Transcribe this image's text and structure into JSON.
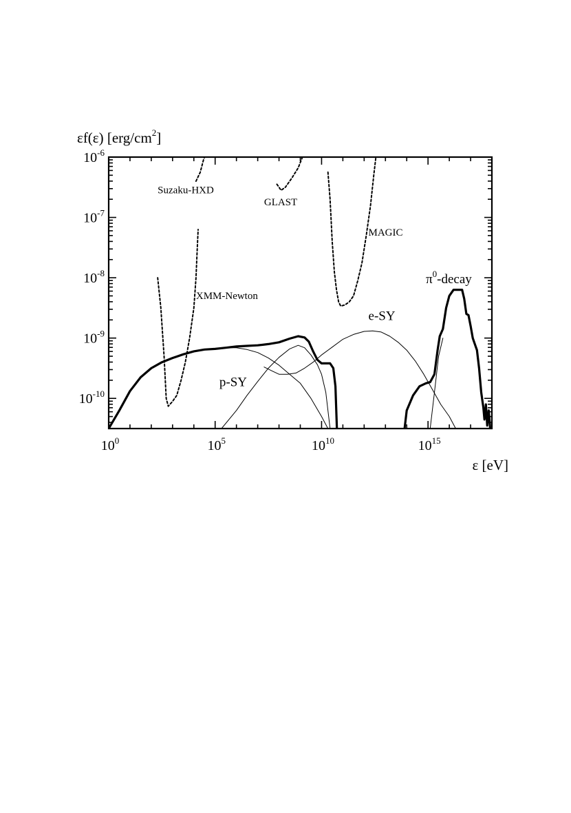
{
  "chart_data": {
    "type": "line",
    "xlabel": "ε [eV]",
    "ylabel": "εf(ε) [erg/cm2]",
    "xscale": "log",
    "yscale": "log",
    "xlim_log10": [
      0,
      18
    ],
    "ylim_log10": [
      -10.5,
      -6
    ],
    "grid": false,
    "x_ticks": [
      {
        "base": "10",
        "exp": "0",
        "log10": 0
      },
      {
        "base": "10",
        "exp": "5",
        "log10": 5
      },
      {
        "base": "10",
        "exp": "10",
        "log10": 10
      },
      {
        "base": "10",
        "exp": "15",
        "log10": 15
      }
    ],
    "y_ticks": [
      {
        "base": "10",
        "exp": "-6",
        "log10": -6
      },
      {
        "base": "10",
        "exp": "-7",
        "log10": -7
      },
      {
        "base": "10",
        "exp": "-8",
        "log10": -8
      },
      {
        "base": "10",
        "exp": "-9",
        "log10": -9
      },
      {
        "base": "10",
        "exp": "-10",
        "log10": -10
      }
    ],
    "series": [
      {
        "style": "thick",
        "points_log10": [
          [
            0,
            -10.5
          ],
          [
            0.5,
            -10.2
          ],
          [
            1,
            -9.88
          ],
          [
            1.5,
            -9.65
          ],
          [
            2,
            -9.5
          ],
          [
            2.5,
            -9.4
          ],
          [
            3,
            -9.33
          ],
          [
            3.5,
            -9.27
          ],
          [
            4,
            -9.22
          ],
          [
            4.5,
            -9.19
          ],
          [
            5,
            -9.18
          ],
          [
            5.5,
            -9.16
          ],
          [
            6,
            -9.14
          ],
          [
            6.5,
            -9.13
          ],
          [
            7,
            -9.12
          ],
          [
            7.5,
            -9.1
          ],
          [
            8,
            -9.07
          ],
          [
            8.5,
            -9.01
          ],
          [
            8.9,
            -8.97
          ],
          [
            9.2,
            -8.99
          ],
          [
            9.4,
            -9.06
          ],
          [
            9.6,
            -9.22
          ],
          [
            9.8,
            -9.36
          ],
          [
            10,
            -9.42
          ],
          [
            10.2,
            -9.42
          ],
          [
            10.4,
            -9.42
          ],
          [
            10.55,
            -9.5
          ],
          [
            10.65,
            -9.8
          ],
          [
            10.72,
            -10.5
          ]
        ]
      },
      {
        "style": "thick",
        "points_log10": [
          [
            13.9,
            -10.5
          ],
          [
            14,
            -10.2
          ],
          [
            14.3,
            -9.95
          ],
          [
            14.6,
            -9.8
          ],
          [
            14.9,
            -9.75
          ],
          [
            15.1,
            -9.73
          ],
          [
            15.3,
            -9.6
          ],
          [
            15.45,
            -9.2
          ],
          [
            15.55,
            -8.97
          ],
          [
            15.7,
            -8.85
          ],
          [
            15.85,
            -8.5
          ],
          [
            16,
            -8.3
          ],
          [
            16.2,
            -8.2
          ],
          [
            16.4,
            -8.2
          ],
          [
            16.6,
            -8.2
          ],
          [
            16.7,
            -8.35
          ],
          [
            16.8,
            -8.6
          ],
          [
            16.9,
            -8.62
          ],
          [
            17,
            -8.8
          ],
          [
            17.1,
            -9.0
          ],
          [
            17.2,
            -9.1
          ],
          [
            17.3,
            -9.2
          ],
          [
            17.4,
            -9.5
          ],
          [
            17.5,
            -9.9
          ],
          [
            17.6,
            -10.15
          ],
          [
            17.65,
            -10.35
          ],
          [
            17.72,
            -10.1
          ],
          [
            17.78,
            -10.45
          ],
          [
            17.85,
            -10.2
          ],
          [
            17.92,
            -10.5
          ]
        ]
      },
      {
        "style": "thin",
        "name": "p-SY",
        "points_log10": [
          [
            0,
            -10.5
          ],
          [
            0.5,
            -10.2
          ],
          [
            1,
            -9.88
          ],
          [
            1.5,
            -9.65
          ],
          [
            2,
            -9.5
          ],
          [
            2.5,
            -9.4
          ],
          [
            3,
            -9.33
          ],
          [
            3.5,
            -9.27
          ],
          [
            4,
            -9.22
          ],
          [
            4.5,
            -9.19
          ],
          [
            5,
            -9.18
          ],
          [
            5.5,
            -9.16
          ],
          [
            6,
            -9.16
          ],
          [
            6.5,
            -9.19
          ],
          [
            7,
            -9.24
          ],
          [
            7.5,
            -9.33
          ],
          [
            8,
            -9.45
          ],
          [
            8.5,
            -9.6
          ],
          [
            9,
            -9.75
          ],
          [
            9.5,
            -10.0
          ],
          [
            10,
            -10.3
          ],
          [
            10.3,
            -10.5
          ]
        ]
      },
      {
        "style": "thin",
        "points_log10": [
          [
            5.3,
            -10.5
          ],
          [
            6,
            -10.2
          ],
          [
            6.5,
            -9.95
          ],
          [
            7,
            -9.72
          ],
          [
            7.5,
            -9.5
          ],
          [
            8,
            -9.32
          ],
          [
            8.5,
            -9.18
          ],
          [
            8.9,
            -9.12
          ],
          [
            9.2,
            -9.16
          ],
          [
            9.5,
            -9.28
          ],
          [
            9.8,
            -9.44
          ],
          [
            10,
            -9.6
          ],
          [
            10.2,
            -9.9
          ],
          [
            10.4,
            -10.5
          ]
        ]
      },
      {
        "style": "thin",
        "name": "e-SY",
        "points_log10": [
          [
            7.3,
            -9.48
          ],
          [
            7.7,
            -9.55
          ],
          [
            8,
            -9.6
          ],
          [
            8.4,
            -9.6
          ],
          [
            8.8,
            -9.58
          ],
          [
            9.2,
            -9.5
          ],
          [
            9.6,
            -9.4
          ],
          [
            10,
            -9.28
          ],
          [
            10.5,
            -9.15
          ],
          [
            11,
            -9.02
          ],
          [
            11.5,
            -8.94
          ],
          [
            12,
            -8.89
          ],
          [
            12.4,
            -8.88
          ],
          [
            12.8,
            -8.9
          ],
          [
            13.2,
            -8.97
          ],
          [
            13.6,
            -9.07
          ],
          [
            14,
            -9.2
          ],
          [
            14.4,
            -9.38
          ],
          [
            14.8,
            -9.6
          ],
          [
            15.2,
            -9.85
          ],
          [
            15.6,
            -10.1
          ],
          [
            16,
            -10.3
          ],
          [
            16.3,
            -10.5
          ]
        ]
      },
      {
        "style": "thin",
        "points_log10": [
          [
            15.1,
            -10.5
          ],
          [
            15.3,
            -9.9
          ],
          [
            15.5,
            -9.3
          ],
          [
            15.7,
            -9.0
          ]
        ]
      },
      {
        "style": "dotted",
        "name": "Suzaku-HXD",
        "points_log10": [
          [
            4.1,
            -6.4
          ],
          [
            4.3,
            -6.25
          ],
          [
            4.45,
            -6.05
          ],
          [
            4.5,
            -6.0
          ]
        ]
      },
      {
        "style": "dotted",
        "name": "XMM-Newton",
        "points_log10": [
          [
            2.3,
            -8.0
          ],
          [
            2.45,
            -8.5
          ],
          [
            2.6,
            -9.3
          ],
          [
            2.7,
            -10.0
          ],
          [
            2.8,
            -10.13
          ],
          [
            3.0,
            -10.05
          ],
          [
            3.2,
            -9.95
          ],
          [
            3.4,
            -9.7
          ],
          [
            3.6,
            -9.4
          ],
          [
            3.8,
            -9.0
          ],
          [
            4.0,
            -8.5
          ],
          [
            4.1,
            -8.0
          ],
          [
            4.15,
            -7.6
          ],
          [
            4.2,
            -7.2
          ]
        ]
      },
      {
        "style": "dotted",
        "name": "GLAST",
        "points_log10": [
          [
            7.9,
            -6.45
          ],
          [
            8.1,
            -6.55
          ],
          [
            8.3,
            -6.5
          ],
          [
            8.6,
            -6.35
          ],
          [
            8.9,
            -6.18
          ],
          [
            9.1,
            -6.0
          ]
        ]
      },
      {
        "style": "dotted",
        "name": "MAGIC",
        "points_log10": [
          [
            10.3,
            -6.25
          ],
          [
            10.4,
            -6.7
          ],
          [
            10.5,
            -7.4
          ],
          [
            10.6,
            -7.9
          ],
          [
            10.7,
            -8.2
          ],
          [
            10.8,
            -8.4
          ],
          [
            10.9,
            -8.47
          ],
          [
            11.1,
            -8.45
          ],
          [
            11.3,
            -8.4
          ],
          [
            11.5,
            -8.3
          ],
          [
            11.7,
            -8.05
          ],
          [
            11.9,
            -7.75
          ],
          [
            12.1,
            -7.3
          ],
          [
            12.3,
            -6.8
          ],
          [
            12.45,
            -6.3
          ],
          [
            12.55,
            -6.0
          ]
        ]
      }
    ],
    "annotations": [
      {
        "text": "Suzaku-HXD",
        "pos_log10": [
          2.3,
          -6.6
        ],
        "type": "instrument"
      },
      {
        "text": "GLAST",
        "pos_log10": [
          7.3,
          -6.8
        ],
        "type": "instrument"
      },
      {
        "text": "MAGIC",
        "pos_log10": [
          12.2,
          -7.3
        ],
        "type": "instrument"
      },
      {
        "text": "XMM-Newton",
        "pos_log10": [
          4.1,
          -8.35
        ],
        "type": "instrument"
      },
      {
        "text": "p-SY",
        "pos_log10": [
          5.2,
          -9.8
        ],
        "type": "component"
      },
      {
        "text": "e-SY",
        "pos_log10": [
          12.2,
          -8.7
        ],
        "type": "component"
      }
    ],
    "pi_label": {
      "base": "π",
      "sup": "0",
      "rest": "-decay",
      "pos_log10": [
        14.9,
        -8.09
      ]
    }
  }
}
